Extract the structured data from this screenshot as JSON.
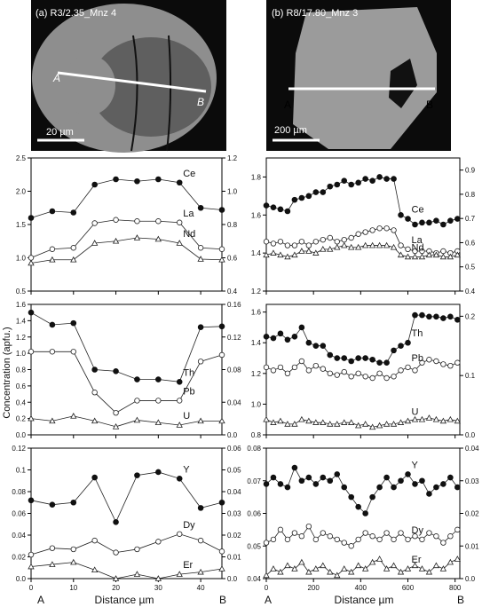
{
  "figure": {
    "ylabel_shared": "Concentration (apfu.)",
    "colors": {
      "background": "#ffffff",
      "axis": "#000000",
      "filled": "#111111",
      "open": "#ffffff",
      "line": "#222222"
    },
    "panels": [
      {
        "label": "(a) R3/2.35_Mnz 4",
        "scale": "20 µm",
        "endpoints": [
          "A",
          "B"
        ],
        "x_axis_label": "Distance µm",
        "x_range": [
          0,
          45
        ],
        "x_ticks": [
          0,
          10,
          20,
          30,
          40
        ]
      },
      {
        "label": "(b) R8/17.80_Mnz 3",
        "scale": "200 µm",
        "endpoints": [
          "A",
          "B"
        ],
        "x_axis_label": "Distance µm",
        "x_range": [
          0,
          820
        ],
        "x_ticks": [
          0,
          200,
          400,
          600,
          800
        ]
      }
    ]
  },
  "chart_data": [
    {
      "type": "line",
      "title": "",
      "panel": "a-top",
      "xlabel": "",
      "ylabel": "",
      "xlim": [
        0,
        45
      ],
      "ylim": [
        0.5,
        2.5
      ],
      "ylim_right": [
        0.4,
        1.2
      ],
      "yticks": [
        0.5,
        1.0,
        1.5,
        2.0,
        2.5
      ],
      "yticks_right": [
        0.4,
        0.6,
        0.8,
        1.0,
        1.2
      ],
      "x": [
        0,
        5,
        10,
        15,
        20,
        25,
        30,
        35,
        40,
        45
      ],
      "series": [
        {
          "name": "Ce",
          "marker": "filled-circle",
          "values": [
            1.6,
            1.7,
            1.68,
            2.1,
            2.18,
            2.15,
            2.18,
            2.13,
            1.75,
            1.72
          ]
        },
        {
          "name": "La",
          "marker": "open-circle",
          "values": [
            1.0,
            1.13,
            1.15,
            1.52,
            1.57,
            1.55,
            1.55,
            1.53,
            1.15,
            1.13
          ]
        },
        {
          "name": "Nd",
          "marker": "open-triangle",
          "values": [
            0.92,
            0.97,
            0.97,
            1.22,
            1.25,
            1.3,
            1.28,
            1.22,
            0.98,
            0.97
          ]
        }
      ]
    },
    {
      "type": "line",
      "title": "",
      "panel": "a-middle",
      "xlabel": "",
      "ylabel": "",
      "xlim": [
        0,
        45
      ],
      "ylim": [
        0.0,
        1.6
      ],
      "ylim_right": [
        0.0,
        0.16
      ],
      "yticks": [
        0.0,
        0.2,
        0.4,
        0.6,
        0.8,
        1.0,
        1.2,
        1.4,
        1.6
      ],
      "yticks_right": [
        0.0,
        0.04,
        0.08,
        0.12,
        0.16
      ],
      "x": [
        0,
        5,
        10,
        15,
        20,
        25,
        30,
        35,
        40,
        45
      ],
      "series": [
        {
          "name": "Th",
          "marker": "filled-circle",
          "values": [
            1.5,
            1.35,
            1.37,
            0.8,
            0.78,
            0.68,
            0.68,
            0.65,
            1.32,
            1.33
          ]
        },
        {
          "name": "Pb",
          "marker": "open-circle",
          "values": [
            1.02,
            1.02,
            1.02,
            0.52,
            0.27,
            0.42,
            0.42,
            0.42,
            0.9,
            0.98
          ]
        },
        {
          "name": "U",
          "marker": "open-triangle",
          "values": [
            0.2,
            0.17,
            0.23,
            0.17,
            0.1,
            0.18,
            0.15,
            0.12,
            0.17,
            0.17
          ]
        }
      ]
    },
    {
      "type": "line",
      "title": "",
      "panel": "a-bottom",
      "xlabel": "Distance µm",
      "ylabel": "",
      "xlim": [
        0,
        45
      ],
      "ylim": [
        0.0,
        0.12
      ],
      "ylim_right": [
        0.0,
        0.06
      ],
      "yticks": [
        0.0,
        0.02,
        0.04,
        0.06,
        0.08,
        0.1,
        0.12
      ],
      "yticks_right": [
        0.0,
        0.01,
        0.02,
        0.03,
        0.04,
        0.05,
        0.06
      ],
      "x": [
        0,
        5,
        10,
        15,
        20,
        25,
        30,
        35,
        40,
        45
      ],
      "series": [
        {
          "name": "Y",
          "marker": "filled-circle",
          "values": [
            0.072,
            0.068,
            0.07,
            0.093,
            0.052,
            0.095,
            0.098,
            0.092,
            0.065,
            0.07
          ]
        },
        {
          "name": "Dy",
          "marker": "open-circle",
          "values": [
            0.022,
            0.028,
            0.027,
            0.035,
            0.024,
            0.027,
            0.034,
            0.041,
            0.035,
            0.025
          ]
        },
        {
          "name": "Er",
          "marker": "open-triangle",
          "values": [
            0.011,
            0.013,
            0.015,
            0.008,
            0.0,
            0.004,
            0.0,
            0.004,
            0.006,
            0.009
          ]
        }
      ]
    },
    {
      "type": "line",
      "title": "",
      "panel": "b-top",
      "xlabel": "",
      "ylabel": "",
      "xlim": [
        0,
        820
      ],
      "ylim": [
        1.2,
        1.9
      ],
      "ylim_right": [
        0.4,
        0.95
      ],
      "yticks": [
        1.2,
        1.4,
        1.6,
        1.8
      ],
      "yticks_right": [
        0.4,
        0.5,
        0.6,
        0.7,
        0.8,
        0.9
      ],
      "x": [
        0,
        30,
        60,
        90,
        120,
        150,
        180,
        210,
        240,
        270,
        300,
        330,
        360,
        390,
        420,
        450,
        480,
        510,
        540,
        570,
        600,
        630,
        660,
        690,
        720,
        750,
        780,
        810
      ],
      "series": [
        {
          "name": "Ce",
          "marker": "filled-circle",
          "values": [
            1.65,
            1.64,
            1.63,
            1.62,
            1.68,
            1.69,
            1.7,
            1.72,
            1.72,
            1.75,
            1.76,
            1.78,
            1.76,
            1.77,
            1.79,
            1.78,
            1.8,
            1.79,
            1.79,
            1.6,
            1.58,
            1.55,
            1.56,
            1.56,
            1.57,
            1.55,
            1.57,
            1.58
          ]
        },
        {
          "name": "La",
          "marker": "open-circle",
          "values": [
            1.46,
            1.45,
            1.46,
            1.44,
            1.44,
            1.46,
            1.44,
            1.46,
            1.47,
            1.48,
            1.46,
            1.47,
            1.48,
            1.5,
            1.51,
            1.52,
            1.53,
            1.53,
            1.52,
            1.44,
            1.42,
            1.41,
            1.41,
            1.41,
            1.4,
            1.41,
            1.4,
            1.41
          ]
        },
        {
          "name": "Nd",
          "marker": "open-triangle",
          "values": [
            1.39,
            1.4,
            1.39,
            1.38,
            1.39,
            1.41,
            1.41,
            1.4,
            1.42,
            1.42,
            1.43,
            1.44,
            1.43,
            1.43,
            1.44,
            1.44,
            1.44,
            1.44,
            1.43,
            1.39,
            1.38,
            1.38,
            1.38,
            1.39,
            1.39,
            1.38,
            1.38,
            1.39
          ]
        }
      ]
    },
    {
      "type": "line",
      "title": "",
      "panel": "b-middle",
      "xlabel": "",
      "ylabel": "",
      "xlim": [
        0,
        820
      ],
      "ylim": [
        0.8,
        1.65
      ],
      "ylim_right": [
        0.0,
        0.22
      ],
      "yticks": [
        0.8,
        1.0,
        1.2,
        1.4,
        1.6
      ],
      "yticks_right": [
        0.0,
        0.1,
        0.2
      ],
      "x": [
        0,
        30,
        60,
        90,
        120,
        150,
        180,
        210,
        240,
        270,
        300,
        330,
        360,
        390,
        420,
        450,
        480,
        510,
        540,
        570,
        600,
        630,
        660,
        690,
        720,
        750,
        780,
        810
      ],
      "series": [
        {
          "name": "Th",
          "marker": "filled-circle",
          "values": [
            1.44,
            1.43,
            1.46,
            1.42,
            1.44,
            1.5,
            1.4,
            1.38,
            1.38,
            1.32,
            1.3,
            1.3,
            1.28,
            1.3,
            1.3,
            1.29,
            1.27,
            1.27,
            1.35,
            1.38,
            1.4,
            1.58,
            1.58,
            1.57,
            1.57,
            1.56,
            1.57,
            1.55
          ]
        },
        {
          "name": "Pb",
          "marker": "open-circle",
          "values": [
            1.24,
            1.22,
            1.24,
            1.2,
            1.24,
            1.28,
            1.22,
            1.25,
            1.23,
            1.2,
            1.19,
            1.21,
            1.18,
            1.2,
            1.18,
            1.17,
            1.2,
            1.17,
            1.18,
            1.22,
            1.24,
            1.22,
            1.27,
            1.29,
            1.28,
            1.26,
            1.25,
            1.27
          ]
        },
        {
          "name": "U",
          "marker": "open-triangle",
          "values": [
            0.9,
            0.88,
            0.89,
            0.87,
            0.87,
            0.9,
            0.89,
            0.88,
            0.88,
            0.87,
            0.87,
            0.88,
            0.88,
            0.86,
            0.87,
            0.85,
            0.86,
            0.87,
            0.87,
            0.88,
            0.89,
            0.9,
            0.9,
            0.91,
            0.9,
            0.89,
            0.9,
            0.89
          ]
        }
      ]
    },
    {
      "type": "line",
      "title": "",
      "panel": "b-bottom",
      "xlabel": "Distance µm",
      "ylabel": "",
      "xlim": [
        0,
        820
      ],
      "ylim": [
        0.04,
        0.08
      ],
      "ylim_right": [
        0.0,
        0.04
      ],
      "yticks": [
        0.04,
        0.05,
        0.06,
        0.07,
        0.08
      ],
      "yticks_right": [
        0.0,
        0.01,
        0.02,
        0.03,
        0.04
      ],
      "x": [
        0,
        30,
        60,
        90,
        120,
        150,
        180,
        210,
        240,
        270,
        300,
        330,
        360,
        390,
        420,
        450,
        480,
        510,
        540,
        570,
        600,
        630,
        660,
        690,
        720,
        750,
        780,
        810
      ],
      "series": [
        {
          "name": "Y",
          "marker": "filled-circle",
          "values": [
            0.069,
            0.071,
            0.069,
            0.068,
            0.074,
            0.07,
            0.071,
            0.069,
            0.071,
            0.07,
            0.072,
            0.068,
            0.065,
            0.062,
            0.06,
            0.065,
            0.068,
            0.071,
            0.068,
            0.07,
            0.072,
            0.069,
            0.07,
            0.066,
            0.068,
            0.069,
            0.071,
            0.068
          ]
        },
        {
          "name": "Dy",
          "marker": "open-circle",
          "values": [
            0.051,
            0.052,
            0.055,
            0.052,
            0.054,
            0.053,
            0.056,
            0.052,
            0.054,
            0.053,
            0.052,
            0.051,
            0.05,
            0.052,
            0.054,
            0.053,
            0.052,
            0.054,
            0.052,
            0.054,
            0.052,
            0.053,
            0.052,
            0.054,
            0.053,
            0.051,
            0.053,
            0.055
          ]
        },
        {
          "name": "Er",
          "marker": "open-triangle",
          "values": [
            0.041,
            0.043,
            0.042,
            0.044,
            0.043,
            0.045,
            0.042,
            0.043,
            0.044,
            0.042,
            0.041,
            0.043,
            0.042,
            0.044,
            0.043,
            0.045,
            0.046,
            0.043,
            0.044,
            0.042,
            0.043,
            0.044,
            0.043,
            0.042,
            0.044,
            0.043,
            0.045,
            0.046
          ]
        }
      ]
    }
  ]
}
